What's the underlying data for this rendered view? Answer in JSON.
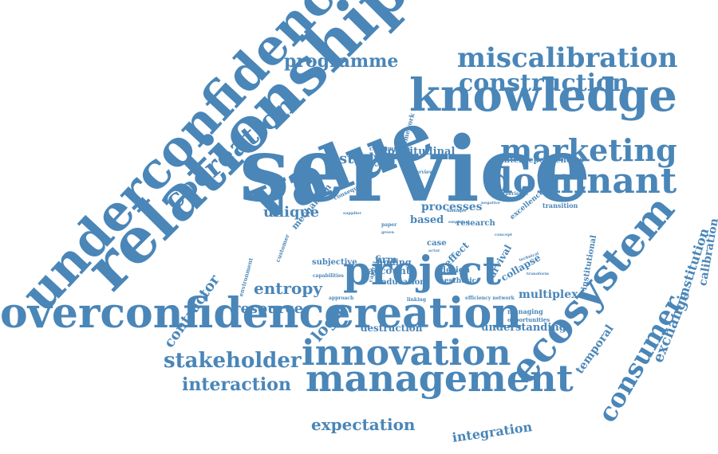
{
  "color": "#4a86b8",
  "words": [
    {
      "text": "service"
    },
    {
      "text": "relationship"
    },
    {
      "text": "value"
    },
    {
      "text": "underconfidence"
    },
    {
      "text": "overconfidence"
    },
    {
      "text": "creation"
    },
    {
      "text": "knowledge"
    },
    {
      "text": "project"
    },
    {
      "text": "innovation"
    },
    {
      "text": "management"
    },
    {
      "text": "ecosystem"
    },
    {
      "text": "dominant"
    },
    {
      "text": "miscalibration"
    },
    {
      "text": "marketing"
    },
    {
      "text": "construction"
    },
    {
      "text": "cocreation"
    },
    {
      "text": "consumer"
    },
    {
      "text": "programme"
    },
    {
      "text": "stakeholder"
    },
    {
      "text": "interaction"
    },
    {
      "text": "expectation"
    },
    {
      "text": "integration"
    },
    {
      "text": "resource"
    },
    {
      "text": "entropy"
    },
    {
      "text": "logic"
    },
    {
      "text": "contractor"
    },
    {
      "text": "unique"
    },
    {
      "text": "study"
    },
    {
      "text": "longitudinal"
    },
    {
      "text": "interdependencies"
    },
    {
      "text": "processes"
    },
    {
      "text": "based"
    },
    {
      "text": "research"
    },
    {
      "text": "multiplex"
    },
    {
      "text": "understanding"
    },
    {
      "text": "destruction"
    },
    {
      "text": "exchange"
    },
    {
      "text": "institution"
    },
    {
      "text": "calibration"
    },
    {
      "text": "temporal"
    },
    {
      "text": "mechanism"
    },
    {
      "text": "collapse"
    },
    {
      "text": "survival"
    },
    {
      "text": "effect"
    },
    {
      "text": "firm"
    },
    {
      "text": "account"
    },
    {
      "text": "finding"
    },
    {
      "text": "education"
    },
    {
      "text": "design"
    },
    {
      "text": "aesthetic"
    },
    {
      "text": "subjective"
    },
    {
      "text": "capabilities"
    },
    {
      "text": "institutional"
    },
    {
      "text": "excellence"
    },
    {
      "text": "transition"
    },
    {
      "text": "framework"
    },
    {
      "text": "consumption"
    },
    {
      "text": "requirement"
    },
    {
      "text": "interview"
    },
    {
      "text": "consequence"
    },
    {
      "text": "managing"
    },
    {
      "text": "opportunities"
    },
    {
      "text": "efficiency network"
    },
    {
      "text": "approach"
    },
    {
      "text": "linking"
    },
    {
      "text": "environment"
    },
    {
      "text": "customer"
    },
    {
      "text": "capital"
    },
    {
      "text": "case"
    },
    {
      "text": "experience"
    },
    {
      "text": "negative"
    },
    {
      "text": "supplier"
    },
    {
      "text": "paper"
    },
    {
      "text": "green"
    },
    {
      "text": "empirical"
    },
    {
      "text": "manager"
    },
    {
      "text": "concept"
    },
    {
      "text": "technical"
    },
    {
      "text": "transform"
    },
    {
      "text": "actor"
    }
  ]
}
